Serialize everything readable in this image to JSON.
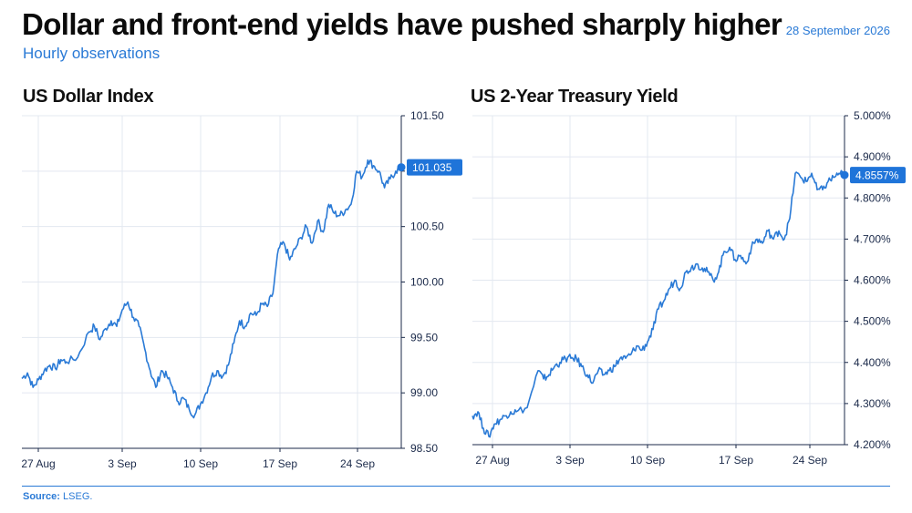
{
  "header": {
    "title": "Dollar and front-end yields have pushed sharply higher",
    "subtitle": "Hourly observations",
    "date": "28 September 2026"
  },
  "source": {
    "label": "Source:",
    "text": "LSEG."
  },
  "colors": {
    "line": "#2a7ad6",
    "grid": "#e3e8f0",
    "axis": "#1b2a4a",
    "tick_text": "#1b2a4a",
    "label_bg": "#1f74d9"
  },
  "chart_data": [
    {
      "type": "line",
      "title": "US Dollar Index",
      "x_ticks": [
        "27 Aug",
        "3 Sep",
        "10 Sep",
        "17 Sep",
        "24 Sep"
      ],
      "xlim": [
        "2026-08-25",
        "2026-09-28"
      ],
      "y_ticks": [
        "98.50",
        "99.00",
        "99.50",
        "100.00",
        "100.50",
        "101.00",
        "101.50"
      ],
      "ylim": [
        98.5,
        101.5
      ],
      "y_axis_side": "right",
      "grid": true,
      "last_value_label": "101.035",
      "last_value": 101.035,
      "series": [
        {
          "x": [
            "2026-08-25",
            "2026-08-25T12",
            "2026-08-26",
            "2026-08-26T12",
            "2026-08-27",
            "2026-08-27T12",
            "2026-08-28",
            "2026-08-28T12",
            "2026-08-29",
            "2026-08-30",
            "2026-08-31",
            "2026-08-31T12",
            "2026-09-01",
            "2026-09-01T12",
            "2026-09-02",
            "2026-09-02T12",
            "2026-09-03",
            "2026-09-03T12",
            "2026-09-04",
            "2026-09-04T12",
            "2026-09-05",
            "2026-09-05T12",
            "2026-09-06",
            "2026-09-06T12",
            "2026-09-07",
            "2026-09-07T12",
            "2026-09-08",
            "2026-09-08T12",
            "2026-09-09",
            "2026-09-09T12",
            "2026-09-10",
            "2026-09-10T12",
            "2026-09-11",
            "2026-09-11T12",
            "2026-09-12",
            "2026-09-12T12",
            "2026-09-13",
            "2026-09-13T12",
            "2026-09-14",
            "2026-09-14T12",
            "2026-09-15",
            "2026-09-15T12",
            "2026-09-16",
            "2026-09-16T12",
            "2026-09-17",
            "2026-09-17T12",
            "2026-09-18",
            "2026-09-18T12",
            "2026-09-19",
            "2026-09-19T12",
            "2026-09-20",
            "2026-09-20T12",
            "2026-09-21",
            "2026-09-21T12",
            "2026-09-22",
            "2026-09-22T12",
            "2026-09-23",
            "2026-09-23T12",
            "2026-09-24",
            "2026-09-24T12",
            "2026-09-25",
            "2026-09-25T12",
            "2026-09-26",
            "2026-09-26T12",
            "2026-09-27",
            "2026-09-27T12",
            "2026-09-28"
          ],
          "values": [
            99.13,
            99.18,
            99.05,
            99.12,
            99.2,
            99.25,
            99.22,
            99.3,
            99.28,
            99.32,
            99.55,
            99.6,
            99.48,
            99.58,
            99.65,
            99.6,
            99.75,
            99.82,
            99.68,
            99.6,
            99.4,
            99.2,
            99.05,
            99.2,
            99.15,
            99.05,
            98.92,
            98.95,
            98.85,
            98.8,
            98.9,
            99.0,
            99.15,
            99.2,
            99.15,
            99.25,
            99.45,
            99.65,
            99.6,
            99.72,
            99.7,
            99.8,
            99.78,
            99.9,
            100.3,
            100.35,
            100.2,
            100.3,
            100.4,
            100.5,
            100.35,
            100.55,
            100.45,
            100.7,
            100.62,
            100.6,
            100.65,
            100.7,
            101.0,
            100.95,
            101.1,
            101.05,
            101.0,
            100.85,
            100.93,
            101.0,
            101.035
          ]
        }
      ]
    },
    {
      "type": "line",
      "title": "US 2-Year Treasury Yield",
      "x_ticks": [
        "27 Aug",
        "3 Sep",
        "10 Sep",
        "17 Sep",
        "24 Sep"
      ],
      "xlim": [
        "2026-08-25",
        "2026-09-28"
      ],
      "y_ticks": [
        "4.200%",
        "4.300%",
        "4.400%",
        "4.500%",
        "4.600%",
        "4.700%",
        "4.800%",
        "4.900%",
        "5.000%"
      ],
      "ylim": [
        4.2,
        5.0
      ],
      "y_axis_side": "right",
      "grid": true,
      "last_value_label": "4.8557%",
      "last_value": 4.8557,
      "series": [
        {
          "x": [
            "2026-08-25",
            "2026-08-25T12",
            "2026-08-26",
            "2026-08-26T12",
            "2026-08-27",
            "2026-08-27T12",
            "2026-08-28",
            "2026-08-28T12",
            "2026-08-29",
            "2026-08-30",
            "2026-08-31",
            "2026-08-31T12",
            "2026-09-01",
            "2026-09-01T12",
            "2026-09-02",
            "2026-09-02T12",
            "2026-09-03",
            "2026-09-03T12",
            "2026-09-04",
            "2026-09-04T12",
            "2026-09-05",
            "2026-09-05T12",
            "2026-09-06",
            "2026-09-06T12",
            "2026-09-07",
            "2026-09-07T12",
            "2026-09-08",
            "2026-09-08T12",
            "2026-09-09",
            "2026-09-09T12",
            "2026-09-10",
            "2026-09-10T12",
            "2026-09-11",
            "2026-09-11T12",
            "2026-09-12",
            "2026-09-12T12",
            "2026-09-13",
            "2026-09-13T12",
            "2026-09-14",
            "2026-09-14T12",
            "2026-09-15",
            "2026-09-15T12",
            "2026-09-16",
            "2026-09-16T12",
            "2026-09-17",
            "2026-09-17T12",
            "2026-09-18",
            "2026-09-18T12",
            "2026-09-19",
            "2026-09-19T12",
            "2026-09-20",
            "2026-09-20T12",
            "2026-09-21",
            "2026-09-21T12",
            "2026-09-22",
            "2026-09-22T12",
            "2026-09-23",
            "2026-09-23T12",
            "2026-09-24",
            "2026-09-24T12",
            "2026-09-25",
            "2026-09-25T12",
            "2026-09-26",
            "2026-09-26T12",
            "2026-09-27",
            "2026-09-27T12",
            "2026-09-28"
          ],
          "values": [
            4.27,
            4.28,
            4.24,
            4.22,
            4.25,
            4.26,
            4.27,
            4.28,
            4.28,
            4.29,
            4.38,
            4.36,
            4.37,
            4.39,
            4.4,
            4.41,
            4.41,
            4.41,
            4.39,
            4.37,
            4.35,
            4.38,
            4.37,
            4.38,
            4.39,
            4.41,
            4.41,
            4.42,
            4.44,
            4.43,
            4.45,
            4.48,
            4.53,
            4.55,
            4.58,
            4.6,
            4.58,
            4.62,
            4.63,
            4.64,
            4.63,
            4.62,
            4.6,
            4.62,
            4.67,
            4.68,
            4.65,
            4.66,
            4.64,
            4.68,
            4.7,
            4.69,
            4.72,
            4.7,
            4.72,
            4.7,
            4.75,
            4.86,
            4.85,
            4.84,
            4.86,
            4.82,
            4.82,
            4.84,
            4.85,
            4.86,
            4.8557
          ]
        }
      ]
    }
  ]
}
